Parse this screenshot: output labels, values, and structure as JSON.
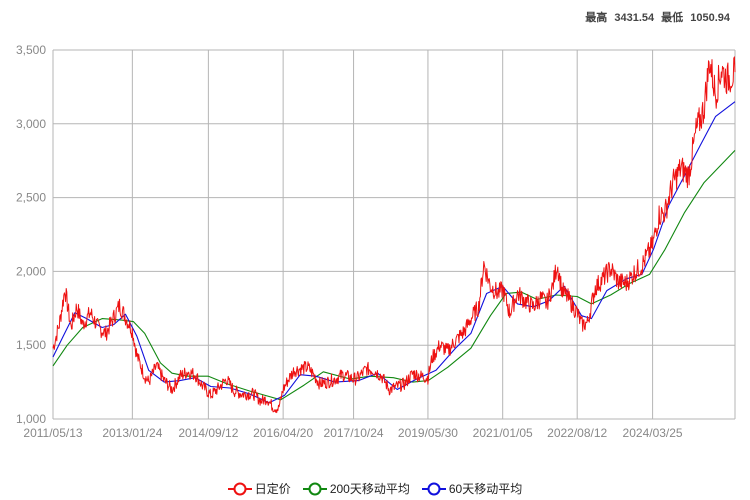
{
  "header": {
    "high_label": "最高",
    "high_value": "3431.54",
    "low_label": "最低",
    "low_value": "1050.94"
  },
  "chart_data": {
    "type": "line",
    "ylim": [
      1000,
      3500
    ],
    "y_ticks": [
      "1,000",
      "1,500",
      "2,000",
      "2,500",
      "3,000",
      "3,500"
    ],
    "x_range": [
      "2011-05-13",
      "2025-12-31"
    ],
    "x_ticks": [
      "2011/05/13",
      "2013/01/24",
      "2014/09/12",
      "2016/04/20",
      "2017/10/24",
      "2019/05/30",
      "2021/01/05",
      "2022/08/12",
      "2024/03/25"
    ],
    "grid": true,
    "legend_position": "bottom",
    "series": [
      {
        "name": "日定价",
        "color": "#ee1111",
        "points": [
          [
            "2011-05-13",
            1480
          ],
          [
            "2011-07-01",
            1640
          ],
          [
            "2011-08-15",
            1880
          ],
          [
            "2011-10-01",
            1620
          ],
          [
            "2011-11-15",
            1760
          ],
          [
            "2012-01-01",
            1640
          ],
          [
            "2012-03-01",
            1720
          ],
          [
            "2012-05-01",
            1620
          ],
          [
            "2012-07-01",
            1580
          ],
          [
            "2012-09-01",
            1690
          ],
          [
            "2012-10-15",
            1770
          ],
          [
            "2012-12-01",
            1690
          ],
          [
            "2013-01-24",
            1600
          ],
          [
            "2013-03-01",
            1430
          ],
          [
            "2013-05-01",
            1290
          ],
          [
            "2013-06-01",
            1250
          ],
          [
            "2013-08-01",
            1360
          ],
          [
            "2013-10-01",
            1260
          ],
          [
            "2013-12-01",
            1200
          ],
          [
            "2014-02-01",
            1290
          ],
          [
            "2014-04-01",
            1320
          ],
          [
            "2014-06-01",
            1300
          ],
          [
            "2014-08-01",
            1220
          ],
          [
            "2014-10-01",
            1160
          ],
          [
            "2014-12-01",
            1210
          ],
          [
            "2015-02-01",
            1270
          ],
          [
            "2015-04-01",
            1190
          ],
          [
            "2015-06-01",
            1170
          ],
          [
            "2015-09-01",
            1170
          ],
          [
            "2015-11-01",
            1120
          ],
          [
            "2015-12-15",
            1140
          ],
          [
            "2016-02-01",
            1080
          ],
          [
            "2016-03-15",
            1070
          ],
          [
            "2016-04-20",
            1200
          ],
          [
            "2016-06-01",
            1270
          ],
          [
            "2016-07-15",
            1330
          ],
          [
            "2016-09-01",
            1340
          ],
          [
            "2016-11-01",
            1350
          ],
          [
            "2016-12-15",
            1300
          ],
          [
            "2017-02-01",
            1240
          ],
          [
            "2017-04-01",
            1250
          ],
          [
            "2017-06-01",
            1270
          ],
          [
            "2017-08-01",
            1300
          ],
          [
            "2017-10-24",
            1270
          ],
          [
            "2017-12-01",
            1280
          ],
          [
            "2018-02-01",
            1340
          ],
          [
            "2018-04-01",
            1330
          ],
          [
            "2018-06-01",
            1290
          ],
          [
            "2018-08-01",
            1200
          ],
          [
            "2018-10-01",
            1220
          ],
          [
            "2018-12-01",
            1240
          ],
          [
            "2019-02-01",
            1310
          ],
          [
            "2019-04-01",
            1290
          ],
          [
            "2019-05-30",
            1280
          ],
          [
            "2019-07-01",
            1410
          ],
          [
            "2019-09-01",
            1500
          ],
          [
            "2019-11-01",
            1460
          ],
          [
            "2020-01-01",
            1530
          ],
          [
            "2020-03-15",
            1600
          ],
          [
            "2020-05-01",
            1680
          ],
          [
            "2020-07-01",
            1760
          ],
          [
            "2020-08-10",
            2050
          ],
          [
            "2020-10-01",
            1900
          ],
          [
            "2020-12-01",
            1850
          ],
          [
            "2021-01-05",
            1880
          ],
          [
            "2021-03-01",
            1720
          ],
          [
            "2021-05-01",
            1850
          ],
          [
            "2021-07-01",
            1800
          ],
          [
            "2021-09-01",
            1760
          ],
          [
            "2021-11-01",
            1820
          ],
          [
            "2021-12-15",
            1780
          ],
          [
            "2022-02-01",
            1900
          ],
          [
            "2022-03-08",
            2050
          ],
          [
            "2022-04-15",
            1870
          ],
          [
            "2022-06-01",
            1820
          ],
          [
            "2022-08-12",
            1720
          ],
          [
            "2022-09-15",
            1640
          ],
          [
            "2022-11-01",
            1650
          ],
          [
            "2023-01-01",
            1890
          ],
          [
            "2023-03-01",
            1950
          ],
          [
            "2023-05-01",
            2020
          ],
          [
            "2023-07-01",
            1930
          ],
          [
            "2023-09-01",
            1920
          ],
          [
            "2023-11-01",
            1990
          ],
          [
            "2024-01-01",
            2040
          ],
          [
            "2024-03-25",
            2180
          ],
          [
            "2024-05-15",
            2380
          ],
          [
            "2024-07-01",
            2400
          ],
          [
            "2024-09-01",
            2600
          ],
          [
            "2024-11-01",
            2700
          ],
          [
            "2025-01-01",
            2650
          ],
          [
            "2025-03-01",
            2950
          ],
          [
            "2025-05-01",
            3100
          ],
          [
            "2025-06-15",
            3430
          ],
          [
            "2025-08-01",
            3200
          ],
          [
            "2025-09-15",
            3370
          ],
          [
            "2025-11-01",
            3300
          ],
          [
            "2025-12-31",
            3350
          ]
        ]
      },
      {
        "name": "200天移动平均",
        "color": "#118811",
        "points": [
          [
            "2011-05-13",
            1360
          ],
          [
            "2011-09-01",
            1500
          ],
          [
            "2012-01-01",
            1620
          ],
          [
            "2012-06-01",
            1680
          ],
          [
            "2012-11-01",
            1670
          ],
          [
            "2013-02-01",
            1660
          ],
          [
            "2013-05-01",
            1580
          ],
          [
            "2013-09-01",
            1380
          ],
          [
            "2013-12-01",
            1310
          ],
          [
            "2014-04-01",
            1290
          ],
          [
            "2014-09-12",
            1290
          ],
          [
            "2015-02-01",
            1240
          ],
          [
            "2015-08-01",
            1190
          ],
          [
            "2015-12-01",
            1160
          ],
          [
            "2016-04-01",
            1130
          ],
          [
            "2016-10-01",
            1230
          ],
          [
            "2017-03-01",
            1320
          ],
          [
            "2017-10-01",
            1270
          ],
          [
            "2018-03-01",
            1290
          ],
          [
            "2018-09-01",
            1280
          ],
          [
            "2019-02-01",
            1250
          ],
          [
            "2019-06-01",
            1260
          ],
          [
            "2019-11-01",
            1350
          ],
          [
            "2020-05-01",
            1480
          ],
          [
            "2020-10-01",
            1700
          ],
          [
            "2021-02-01",
            1850
          ],
          [
            "2021-06-01",
            1860
          ],
          [
            "2021-10-01",
            1810
          ],
          [
            "2022-03-01",
            1840
          ],
          [
            "2022-08-12",
            1830
          ],
          [
            "2022-12-01",
            1780
          ],
          [
            "2023-05-01",
            1840
          ],
          [
            "2023-10-01",
            1920
          ],
          [
            "2024-03-01",
            1980
          ],
          [
            "2024-07-01",
            2150
          ],
          [
            "2024-12-01",
            2400
          ],
          [
            "2025-05-01",
            2600
          ],
          [
            "2025-12-31",
            2820
          ]
        ]
      },
      {
        "name": "60天移动平均",
        "color": "#1111dd",
        "points": [
          [
            "2011-05-13",
            1420
          ],
          [
            "2011-08-01",
            1560
          ],
          [
            "2011-11-01",
            1720
          ],
          [
            "2012-02-01",
            1680
          ],
          [
            "2012-06-01",
            1620
          ],
          [
            "2012-09-01",
            1640
          ],
          [
            "2012-12-01",
            1710
          ],
          [
            "2013-03-01",
            1560
          ],
          [
            "2013-06-01",
            1330
          ],
          [
            "2013-10-01",
            1250
          ],
          [
            "2014-02-01",
            1260
          ],
          [
            "2014-06-01",
            1280
          ],
          [
            "2014-10-01",
            1220
          ],
          [
            "2015-03-01",
            1210
          ],
          [
            "2015-08-01",
            1170
          ],
          [
            "2016-01-01",
            1110
          ],
          [
            "2016-05-01",
            1160
          ],
          [
            "2016-09-01",
            1300
          ],
          [
            "2017-01-01",
            1290
          ],
          [
            "2017-06-01",
            1250
          ],
          [
            "2017-12-01",
            1260
          ],
          [
            "2018-05-01",
            1310
          ],
          [
            "2018-10-01",
            1200
          ],
          [
            "2019-03-01",
            1270
          ],
          [
            "2019-08-01",
            1330
          ],
          [
            "2020-01-01",
            1480
          ],
          [
            "2020-05-01",
            1580
          ],
          [
            "2020-09-01",
            1850
          ],
          [
            "2021-01-05",
            1900
          ],
          [
            "2021-05-01",
            1780
          ],
          [
            "2021-09-01",
            1760
          ],
          [
            "2022-01-01",
            1800
          ],
          [
            "2022-05-01",
            1900
          ],
          [
            "2022-09-15",
            1700
          ],
          [
            "2022-12-01",
            1680
          ],
          [
            "2023-04-01",
            1870
          ],
          [
            "2023-09-01",
            1950
          ],
          [
            "2024-01-01",
            1980
          ],
          [
            "2024-04-01",
            2150
          ],
          [
            "2024-08-01",
            2450
          ],
          [
            "2024-12-01",
            2650
          ],
          [
            "2025-04-01",
            2850
          ],
          [
            "2025-08-01",
            3050
          ],
          [
            "2025-12-31",
            3150
          ]
        ]
      }
    ]
  }
}
